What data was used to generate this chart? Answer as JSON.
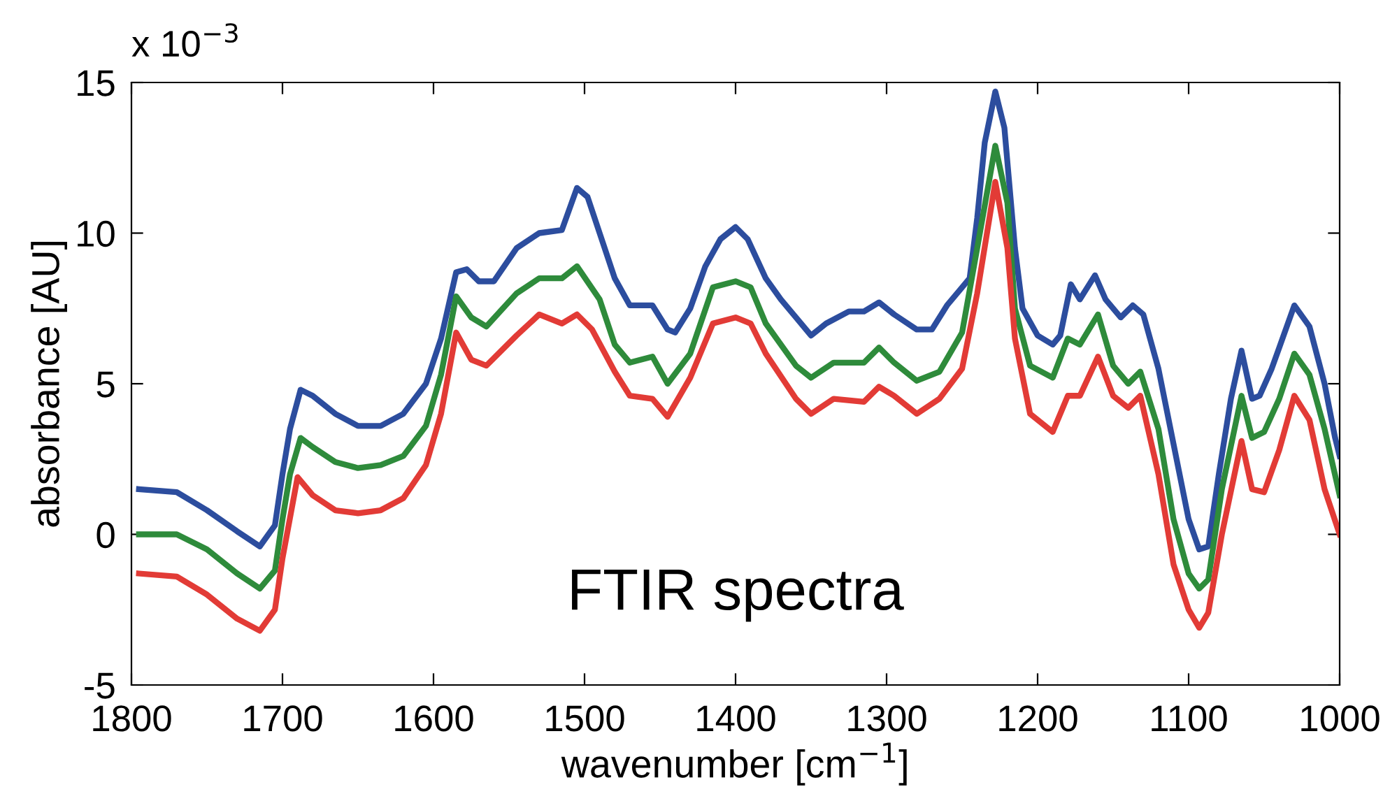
{
  "chart_data": {
    "type": "line",
    "xlabel": "wavenumber [cm$^{−1}$]",
    "ylabel": "absorbance [AU]",
    "annotations": [
      "x 10$^{−3}$",
      "FTIR spectra"
    ],
    "xlim": [
      1800,
      1000
    ],
    "xticks": [
      1800,
      1700,
      1600,
      1500,
      1400,
      1300,
      1200,
      1100,
      1000
    ],
    "ylim": [
      -5,
      15
    ],
    "yticks": [
      -5,
      0,
      5,
      10,
      15
    ],
    "grid": false,
    "legend": false,
    "marker": "none",
    "line_style": "solid",
    "series": [
      {
        "color": "#2c4d9e",
        "x": [
          1795,
          1770,
          1750,
          1730,
          1715,
          1705,
          1700,
          1695,
          1688,
          1680,
          1665,
          1650,
          1635,
          1620,
          1605,
          1595,
          1585,
          1578,
          1570,
          1560,
          1545,
          1530,
          1515,
          1505,
          1498,
          1490,
          1480,
          1470,
          1455,
          1445,
          1440,
          1430,
          1420,
          1410,
          1400,
          1392,
          1380,
          1370,
          1360,
          1350,
          1340,
          1325,
          1315,
          1305,
          1295,
          1280,
          1270,
          1260,
          1250,
          1245,
          1240,
          1235,
          1228,
          1222,
          1215,
          1210,
          1200,
          1190,
          1185,
          1178,
          1172,
          1162,
          1155,
          1145,
          1137,
          1130,
          1120,
          1110,
          1100,
          1093,
          1087,
          1080,
          1072,
          1065,
          1058,
          1053,
          1045,
          1040,
          1030,
          1020,
          1010,
          1003,
          1000
        ],
        "values": [
          1.5,
          1.4,
          0.8,
          0.1,
          -0.4,
          0.3,
          2.0,
          3.5,
          4.8,
          4.6,
          4.0,
          3.6,
          3.6,
          4.0,
          5.0,
          6.5,
          8.7,
          8.8,
          8.4,
          8.4,
          9.5,
          10.0,
          10.1,
          11.5,
          11.2,
          10.0,
          8.5,
          7.6,
          7.6,
          6.8,
          6.7,
          7.5,
          8.9,
          9.8,
          10.2,
          9.8,
          8.5,
          7.8,
          7.2,
          6.6,
          7.0,
          7.4,
          7.4,
          7.7,
          7.3,
          6.8,
          6.8,
          7.6,
          8.2,
          8.5,
          10.5,
          13.0,
          14.7,
          13.5,
          9.5,
          7.5,
          6.6,
          6.3,
          6.6,
          8.3,
          7.8,
          8.6,
          7.8,
          7.2,
          7.6,
          7.3,
          5.5,
          3.0,
          0.5,
          -0.5,
          -0.4,
          2.0,
          4.5,
          6.1,
          4.5,
          4.6,
          5.5,
          6.2,
          7.6,
          6.9,
          5.0,
          3.2,
          2.6
        ]
      },
      {
        "color": "#2e8b3b",
        "x": [
          1795,
          1770,
          1750,
          1730,
          1715,
          1705,
          1700,
          1695,
          1688,
          1680,
          1665,
          1650,
          1635,
          1620,
          1605,
          1595,
          1585,
          1575,
          1565,
          1545,
          1530,
          1515,
          1505,
          1490,
          1480,
          1470,
          1455,
          1445,
          1430,
          1415,
          1400,
          1390,
          1380,
          1360,
          1350,
          1335,
          1315,
          1305,
          1295,
          1280,
          1265,
          1250,
          1240,
          1228,
          1220,
          1215,
          1205,
          1190,
          1180,
          1172,
          1160,
          1150,
          1140,
          1132,
          1120,
          1110,
          1100,
          1093,
          1087,
          1078,
          1065,
          1058,
          1050,
          1040,
          1030,
          1020,
          1010,
          1000
        ],
        "values": [
          0.0,
          0.0,
          -0.5,
          -1.3,
          -1.8,
          -1.2,
          0.5,
          2.0,
          3.2,
          2.9,
          2.4,
          2.2,
          2.3,
          2.6,
          3.6,
          5.3,
          7.9,
          7.2,
          6.9,
          8.0,
          8.5,
          8.5,
          8.9,
          7.8,
          6.3,
          5.7,
          5.9,
          5.0,
          6.0,
          8.2,
          8.4,
          8.2,
          7.0,
          5.6,
          5.2,
          5.7,
          5.7,
          6.2,
          5.7,
          5.1,
          5.4,
          6.7,
          9.5,
          12.9,
          11.0,
          7.5,
          5.6,
          5.2,
          6.5,
          6.3,
          7.3,
          5.6,
          5.0,
          5.4,
          3.5,
          0.5,
          -1.3,
          -1.8,
          -1.5,
          1.5,
          4.6,
          3.2,
          3.4,
          4.5,
          6.0,
          5.3,
          3.5,
          1.3
        ]
      },
      {
        "color": "#e23b36",
        "x": [
          1795,
          1770,
          1750,
          1730,
          1715,
          1705,
          1700,
          1690,
          1680,
          1665,
          1650,
          1635,
          1620,
          1605,
          1595,
          1585,
          1575,
          1565,
          1545,
          1530,
          1515,
          1505,
          1495,
          1480,
          1470,
          1455,
          1445,
          1430,
          1415,
          1400,
          1390,
          1380,
          1360,
          1350,
          1335,
          1315,
          1305,
          1295,
          1280,
          1265,
          1250,
          1240,
          1228,
          1220,
          1215,
          1205,
          1190,
          1180,
          1172,
          1160,
          1150,
          1140,
          1132,
          1120,
          1110,
          1100,
          1093,
          1087,
          1078,
          1065,
          1058,
          1050,
          1040,
          1030,
          1020,
          1010,
          1000
        ],
        "values": [
          -1.3,
          -1.4,
          -2.0,
          -2.8,
          -3.2,
          -2.5,
          -0.8,
          1.9,
          1.3,
          0.8,
          0.7,
          0.8,
          1.2,
          2.3,
          4.0,
          6.7,
          5.8,
          5.6,
          6.6,
          7.3,
          7.0,
          7.3,
          6.8,
          5.4,
          4.6,
          4.5,
          3.9,
          5.2,
          7.0,
          7.2,
          7.0,
          6.0,
          4.5,
          4.0,
          4.5,
          4.4,
          4.9,
          4.6,
          4.0,
          4.5,
          5.5,
          8.0,
          11.7,
          9.5,
          6.5,
          4.0,
          3.4,
          4.6,
          4.6,
          5.9,
          4.6,
          4.2,
          4.6,
          2.0,
          -1.0,
          -2.5,
          -3.1,
          -2.6,
          0.0,
          3.1,
          1.5,
          1.4,
          2.8,
          4.6,
          3.8,
          1.5,
          0.0
        ]
      }
    ]
  }
}
